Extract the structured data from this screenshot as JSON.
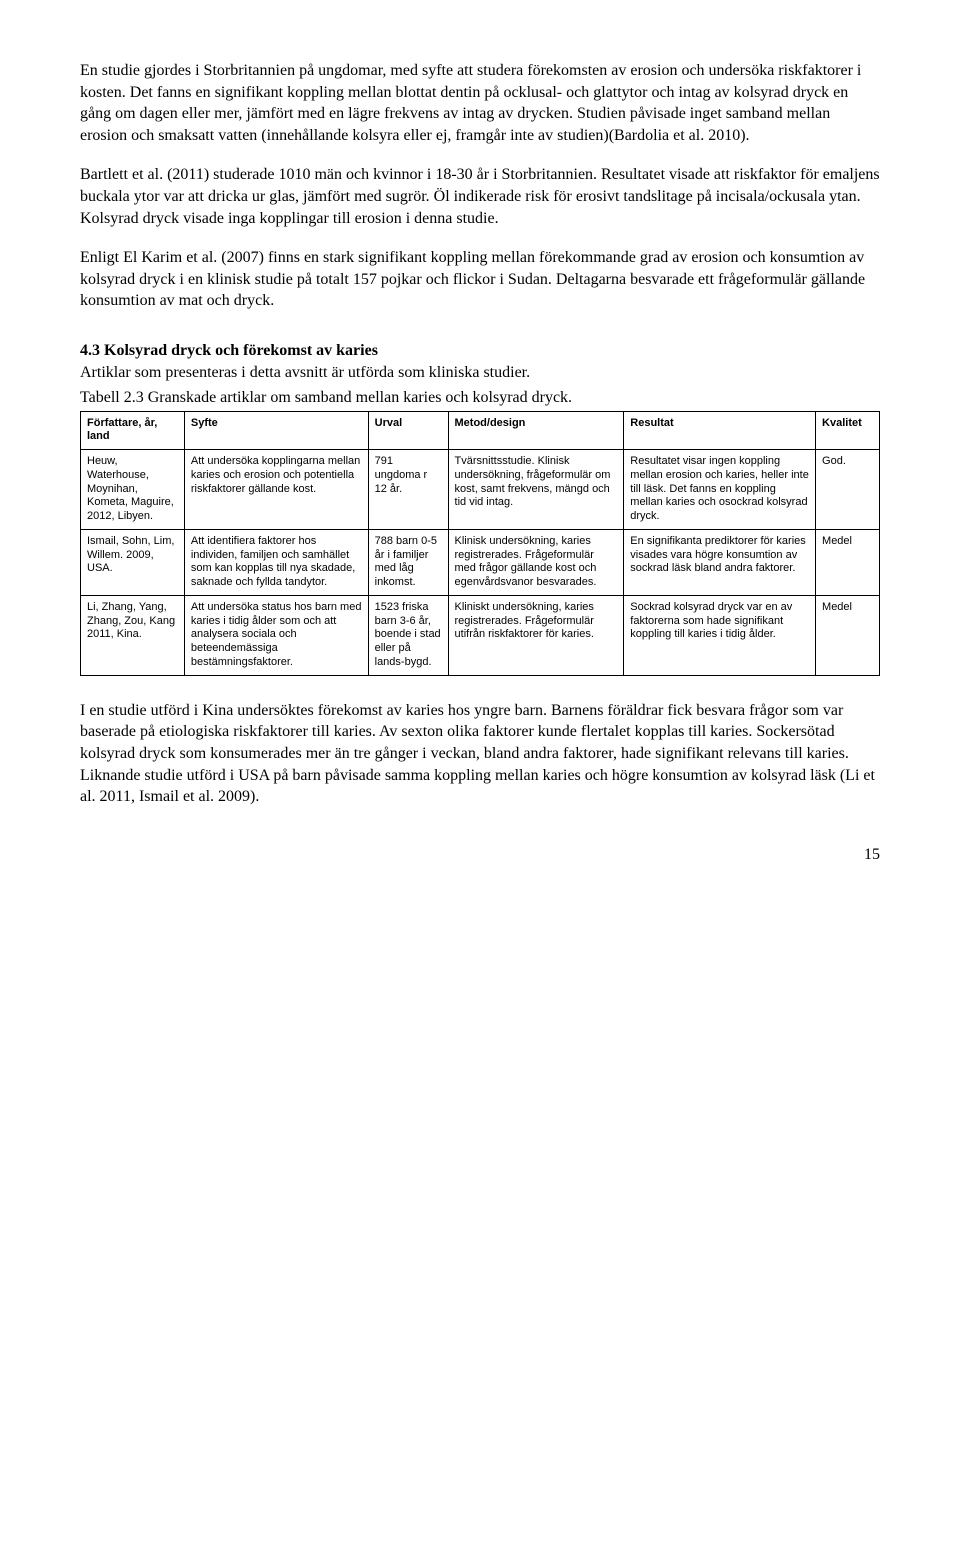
{
  "paragraphs": {
    "p1": "En studie gjordes i Storbritannien på ungdomar, med syfte att studera förekomsten av erosion och undersöka riskfaktorer i kosten. Det fanns en signifikant koppling mellan blottat dentin på ocklusal- och glattytor och intag av kolsyrad dryck en gång om dagen eller mer, jämfört med en lägre frekvens av intag av drycken. Studien påvisade inget samband mellan erosion och smaksatt vatten (innehållande kolsyra eller ej, framgår inte av studien)(Bardolia et al. 2010).",
    "p2": "Bartlett et al. (2011) studerade 1010 män och kvinnor i 18-30 år i Storbritannien. Resultatet visade att riskfaktor för emaljens buckala ytor var att dricka ur glas, jämfört med sugrör. Öl indikerade risk för erosivt tandslitage på incisala/ockusala ytan. Kolsyrad dryck visade inga kopplingar till erosion i denna studie.",
    "p3": "Enligt El Karim et al. (2007) finns en stark signifikant koppling mellan förekommande grad av erosion och konsumtion av kolsyrad dryck i en klinisk studie på totalt 157 pojkar och flickor i Sudan. Deltagarna besvarade ett frågeformulär gällande konsumtion av mat och dryck."
  },
  "section": {
    "title": "4.3 Kolsyrad dryck och förekomst av karies",
    "intro": "Artiklar som presenteras i detta avsnitt är utförda som kliniska studier.",
    "table_caption": "Tabell 2.3 Granskade artiklar om samband mellan karies och kolsyrad dryck."
  },
  "table": {
    "col_widths": [
      "13%",
      "23%",
      "10%",
      "22%",
      "24%",
      "8%"
    ],
    "headers": [
      "Författare, år, land",
      "Syfte",
      "Urval",
      "Metod/design",
      "Resultat",
      "Kvalitet"
    ],
    "rows": [
      [
        "Heuw, Waterhouse, Moynihan, Kometa, Maguire, 2012, Libyen.",
        "Att undersöka kopplingarna mellan karies och erosion och potentiella riskfaktorer gällande kost.",
        "791 ungdoma r 12 år.",
        "Tvärsnittsstudie. Klinisk undersökning, frågeformulär om kost, samt frekvens, mängd och tid vid intag.",
        "Resultatet visar ingen koppling mellan erosion och karies, heller inte till läsk. Det fanns en koppling mellan karies och osockrad kolsyrad dryck.",
        "God."
      ],
      [
        "Ismail, Sohn, Lim, Willem. 2009, USA.",
        "Att identifiera faktorer hos individen, familjen och samhället som kan kopplas till nya skadade, saknade och fyllda tandytor.",
        "788 barn 0-5 år i familjer med låg inkomst.",
        "Klinisk undersökning, karies registrerades. Frågeformulär med frågor gällande kost och egenvårdsvanor besvarades.",
        "En signifikanta prediktorer för karies visades vara högre konsumtion av sockrad läsk bland andra faktorer.",
        "Medel"
      ],
      [
        "Li, Zhang, Yang, Zhang, Zou, Kang 2011, Kina.",
        "Att undersöka status hos barn med karies i tidig ålder som och att analysera sociala och beteendemässiga bestämningsfaktorer.",
        " 1523 friska barn 3-6 år, boende i stad eller på lands-bygd.",
        " Kliniskt undersökning, karies registrerades. Frågeformulär utifrån riskfaktorer för karies.",
        "Sockrad kolsyrad dryck var en av faktorerna som hade signifikant koppling till karies i tidig ålder.",
        "Medel"
      ]
    ]
  },
  "paragraph_after": "I en studie utförd i Kina undersöktes förekomst av karies hos yngre barn. Barnens föräldrar fick besvara frågor som var baserade på etiologiska riskfaktorer till karies. Av sexton olika faktorer kunde flertalet kopplas till karies. Sockersötad kolsyrad dryck som konsumerades mer än tre gånger i veckan, bland andra faktorer, hade signifikant relevans till karies. Liknande studie utförd i USA på barn påvisade samma koppling mellan karies och högre konsumtion av kolsyrad läsk (Li et al. 2011, Ismail et al. 2009).",
  "page_number": "15"
}
